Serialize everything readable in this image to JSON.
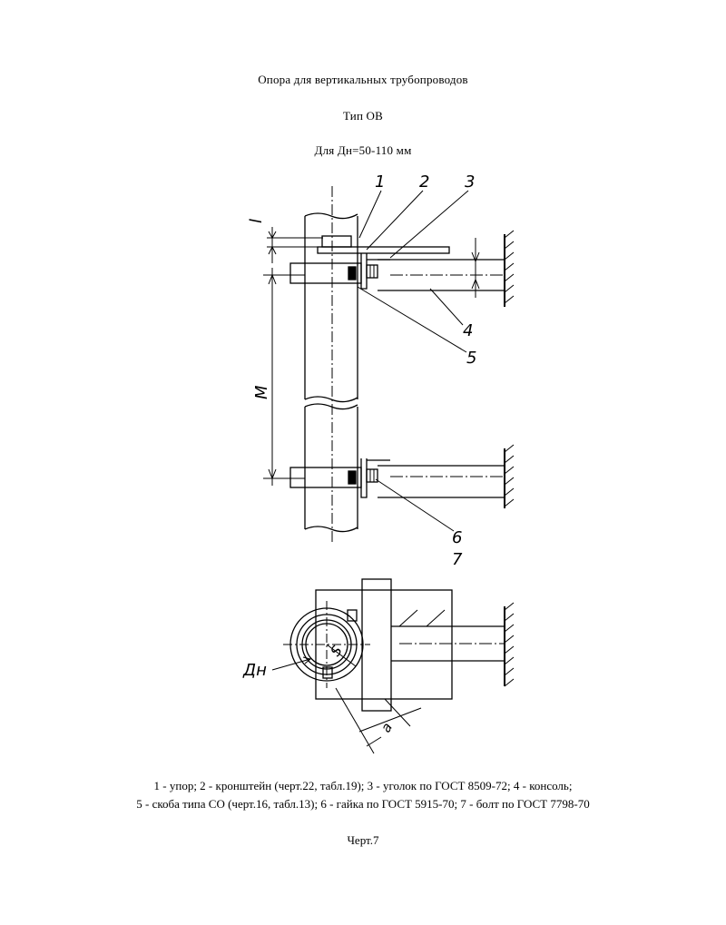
{
  "header": {
    "title": "Опора для вертикальных трубопроводов",
    "type_line": "Тип ОВ",
    "range_line": "Для Дн=50-110 мм"
  },
  "labels": {
    "part_1": "1",
    "part_2": "2",
    "part_3": "3",
    "part_4": "4",
    "part_5": "5",
    "part_6": "6",
    "part_7": "7",
    "dim_l": "l",
    "dim_M": "M",
    "dim_S": "S",
    "dim_a": "a",
    "dim_Dn": "Дн"
  },
  "legend": {
    "line1": "1 - упор; 2 - кронштейн (черт.22, табл.19); 3 - уголок по ГОСТ 8509-72; 4 - консоль;",
    "line2": "5 - скоба типа СО (черт.16, табл.13); 6 - гайка по ГОСТ 5915-70; 7 - болт по ГОСТ 7798-70"
  },
  "caption": "Черт.7"
}
